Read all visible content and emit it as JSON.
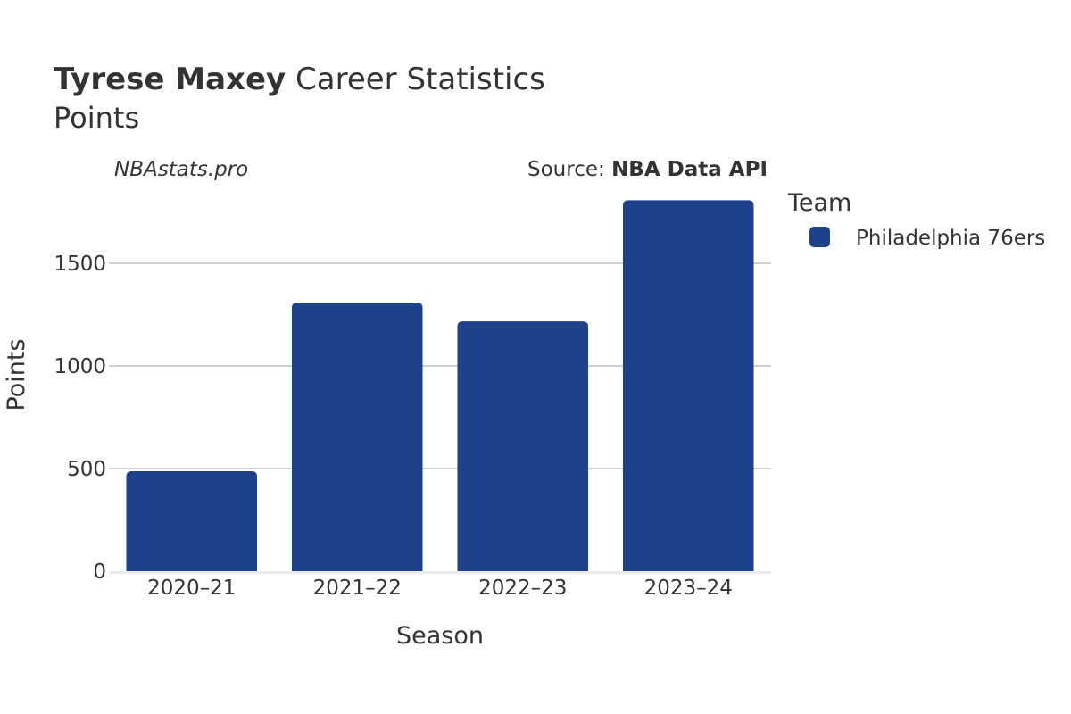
{
  "header": {
    "player_name": "Tyrese Maxey",
    "title_rest": "Career Statistics",
    "subtitle": "Points",
    "credit": "NBAstats.pro",
    "source_label": "Source: ",
    "source_name": "NBA Data API"
  },
  "chart_data": {
    "type": "bar",
    "title": "Tyrese Maxey Career Statistics",
    "subtitle": "Points",
    "xlabel": "Season",
    "ylabel": "Points",
    "categories": [
      "2020–21",
      "2021–22",
      "2022–23",
      "2023–24"
    ],
    "series": [
      {
        "name": "Philadelphia 76ers",
        "values": [
          487,
          1308,
          1217,
          1807
        ],
        "color": "#1d428a"
      }
    ],
    "ylim": [
      0,
      1850
    ],
    "yticks": [
      0,
      500,
      1000,
      1500
    ],
    "grid": true,
    "legend": {
      "title": "Team",
      "placement": "right"
    }
  }
}
